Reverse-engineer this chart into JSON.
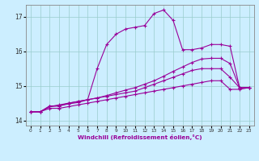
{
  "xlabel": "Windchill (Refroidissement éolien,°C)",
  "bg_color": "#cceeff",
  "grid_color": "#99cccc",
  "line_color": "#990099",
  "xlim": [
    -0.5,
    23.5
  ],
  "ylim": [
    13.85,
    17.35
  ],
  "xticks": [
    0,
    1,
    2,
    3,
    4,
    5,
    6,
    7,
    8,
    9,
    10,
    11,
    12,
    13,
    14,
    15,
    16,
    17,
    18,
    19,
    20,
    21,
    22,
    23
  ],
  "yticks": [
    14,
    15,
    16,
    17
  ],
  "series": [
    [
      14.25,
      14.25,
      14.35,
      14.35,
      14.4,
      14.45,
      14.5,
      14.55,
      14.6,
      14.65,
      14.7,
      14.75,
      14.8,
      14.85,
      14.9,
      14.95,
      15.0,
      15.05,
      15.1,
      15.15,
      15.15,
      14.9,
      14.9,
      14.95
    ],
    [
      14.25,
      14.25,
      14.4,
      14.45,
      14.5,
      14.55,
      14.6,
      14.65,
      14.7,
      14.75,
      14.8,
      14.85,
      14.95,
      15.05,
      15.15,
      15.25,
      15.35,
      15.45,
      15.5,
      15.5,
      15.5,
      15.25,
      14.95,
      14.95
    ],
    [
      14.25,
      14.25,
      14.4,
      14.42,
      14.5,
      14.55,
      14.6,
      14.65,
      14.72,
      14.8,
      14.88,
      14.95,
      15.05,
      15.15,
      15.28,
      15.42,
      15.55,
      15.68,
      15.78,
      15.8,
      15.8,
      15.65,
      14.95,
      14.95
    ],
    [
      14.25,
      14.25,
      14.42,
      14.42,
      14.48,
      14.52,
      14.6,
      15.5,
      16.2,
      16.5,
      16.65,
      16.7,
      16.75,
      17.1,
      17.2,
      16.9,
      16.05,
      16.05,
      16.1,
      16.2,
      16.2,
      16.15,
      14.95,
      14.95
    ]
  ]
}
